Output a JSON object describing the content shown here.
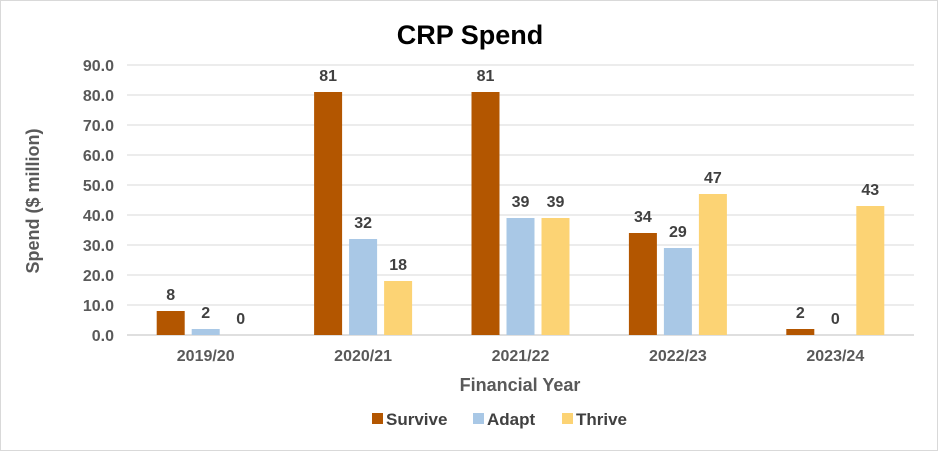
{
  "chart_data": {
    "type": "bar",
    "title": "CRP Spend",
    "xlabel": "Financial Year",
    "ylabel": "Spend ($ million)",
    "categories": [
      "2019/20",
      "2020/21",
      "2021/22",
      "2022/23",
      "2023/24"
    ],
    "ylim": [
      0,
      90
    ],
    "ytick_labels": [
      "0.0",
      "10.0",
      "20.0",
      "30.0",
      "40.0",
      "50.0",
      "60.0",
      "70.0",
      "80.0",
      "90.0"
    ],
    "grid": true,
    "legend_position": "bottom",
    "series": [
      {
        "name": "Survive",
        "color": "#b35600",
        "values": [
          8,
          81,
          81,
          34,
          2
        ],
        "labels": [
          "8",
          "81",
          "81",
          "34",
          "2"
        ]
      },
      {
        "name": "Adapt",
        "color": "#a9c8e6",
        "values": [
          2,
          32,
          39,
          29,
          0
        ],
        "labels": [
          "2",
          "32",
          "39",
          "29",
          "0"
        ]
      },
      {
        "name": "Thrive",
        "color": "#fcd374",
        "values": [
          0,
          18,
          39,
          47,
          43
        ],
        "labels": [
          "0",
          "18",
          "39",
          "47",
          "43"
        ]
      }
    ]
  }
}
